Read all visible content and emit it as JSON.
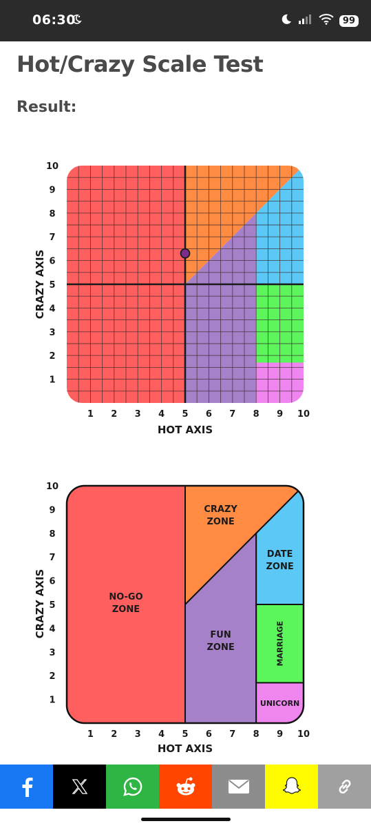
{
  "status": {
    "time": "06:30",
    "battery": "99"
  },
  "page": {
    "title": "Hot/Crazy Scale Test",
    "result_label": "Result:"
  },
  "chart1": {
    "xlabel": "HOT AXIS",
    "ylabel": "CRAZY AXIS",
    "xticks": [
      "1",
      "2",
      "3",
      "4",
      "5",
      "6",
      "7",
      "8",
      "9",
      "10"
    ],
    "yticks": [
      "1",
      "2",
      "3",
      "4",
      "5",
      "6",
      "7",
      "8",
      "9",
      "10"
    ]
  },
  "chart2": {
    "xlabel": "HOT AXIS",
    "ylabel": "CRAZY AXIS",
    "xticks": [
      "1",
      "2",
      "3",
      "4",
      "5",
      "6",
      "7",
      "8",
      "9",
      "10"
    ],
    "yticks": [
      "1",
      "2",
      "3",
      "4",
      "5",
      "6",
      "7",
      "8",
      "9",
      "10"
    ],
    "zones": {
      "nogo": [
        "NO-GO",
        "ZONE"
      ],
      "crazy": [
        "CRAZY",
        "ZONE"
      ],
      "fun": [
        "FUN",
        "ZONE"
      ],
      "date": [
        "DATE",
        "ZONE"
      ],
      "marriage": "MARRIAGE",
      "unicorn": "UNICORN"
    }
  },
  "chart_data": [
    {
      "type": "scatter",
      "x": [
        5
      ],
      "y": [
        6.3
      ],
      "xlabel": "HOT AXIS",
      "ylabel": "CRAZY AXIS",
      "xlim": [
        0,
        10
      ],
      "ylim": [
        0,
        10
      ],
      "grid": true,
      "regions": [
        {
          "name": "no-go",
          "color": "#ff5f5f"
        },
        {
          "name": "crazy",
          "color": "#ff8c42"
        },
        {
          "name": "fun",
          "color": "#a680c8"
        },
        {
          "name": "date",
          "color": "#5bc8f5"
        },
        {
          "name": "marriage",
          "color": "#5cf55c"
        },
        {
          "name": "unicorn",
          "color": "#ef86ef"
        }
      ]
    }
  ],
  "share": [
    {
      "name": "facebook",
      "color": "#1877f2"
    },
    {
      "name": "x",
      "color": "#000000"
    },
    {
      "name": "whatsapp",
      "color": "#2fb544"
    },
    {
      "name": "reddit",
      "color": "#ff4500"
    },
    {
      "name": "email",
      "color": "#8d8d8d"
    },
    {
      "name": "snapchat",
      "color": "#fffc00"
    },
    {
      "name": "link",
      "color": "#a0a0a0"
    }
  ],
  "colors": {
    "nogo": "#ff5f5f",
    "crazy": "#ff8c42",
    "fun": "#a680c8",
    "date": "#5bc8f5",
    "marriage": "#5cf55c",
    "unicorn": "#ef86ef",
    "point": "#7b2d8e"
  }
}
